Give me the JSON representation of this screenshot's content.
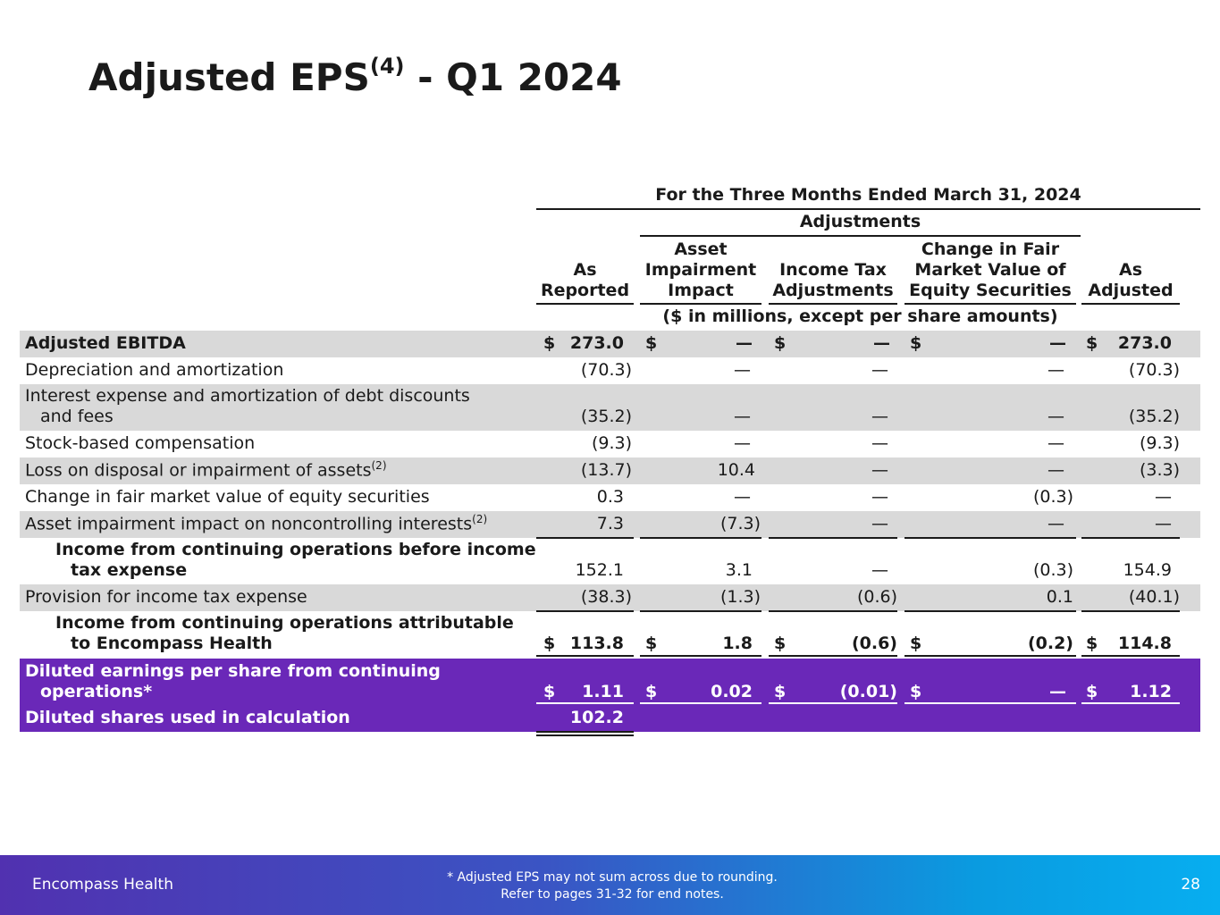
{
  "title": {
    "main": "Adjusted EPS",
    "sup": "(4)",
    "suffix": " - Q1 2024"
  },
  "table": {
    "period_header": "For the Three Months Ended March 31, 2024",
    "adjustments_header": "Adjustments",
    "columns": {
      "as_reported": [
        "As",
        "Reported"
      ],
      "asset_impairment": [
        "Asset",
        "Impairment",
        "Impact"
      ],
      "income_tax": [
        "Income Tax",
        "Adjustments"
      ],
      "fair_value": [
        "Change in Fair",
        "Market Value of",
        "Equity Securities"
      ],
      "as_adjusted": [
        "As",
        "Adjusted"
      ]
    },
    "units_note": "($ in millions, except per share amounts)",
    "dollar_sign": "$",
    "rows": [
      {
        "label": "Adjusted EBITDA",
        "values": [
          "273.0",
          "—",
          "—",
          "—",
          "273.0"
        ]
      },
      {
        "label": "Depreciation and amortization",
        "values": [
          "(70.3)",
          "—",
          "—",
          "—",
          "(70.3)"
        ]
      },
      {
        "label": "Interest expense and amortization of debt discounts",
        "label2": "and fees",
        "values": [
          "(35.2)",
          "—",
          "—",
          "—",
          "(35.2)"
        ]
      },
      {
        "label": "Stock-based compensation",
        "values": [
          "(9.3)",
          "—",
          "—",
          "—",
          "(9.3)"
        ]
      },
      {
        "label": "Loss on disposal or impairment of assets",
        "sup": "(2)",
        "values": [
          "(13.7)",
          "10.4",
          "—",
          "—",
          "(3.3)"
        ]
      },
      {
        "label": "Change in fair market value of equity securities",
        "values": [
          "0.3",
          "—",
          "—",
          "(0.3)",
          "—"
        ]
      },
      {
        "label": "Asset impairment impact on noncontrolling interests",
        "sup": "(2)",
        "values": [
          "7.3",
          "(7.3)",
          "—",
          "—",
          "—"
        ]
      },
      {
        "label": "Income from continuing operations before income",
        "label2": "tax expense",
        "values": [
          "152.1",
          "3.1",
          "—",
          "(0.3)",
          "154.9"
        ]
      },
      {
        "label": "Provision for income tax expense",
        "values": [
          "(38.3)",
          "(1.3)",
          "(0.6)",
          "0.1",
          "(40.1)"
        ]
      },
      {
        "label": "Income from continuing operations attributable",
        "label2": "to Encompass Health",
        "values": [
          "113.8",
          "1.8",
          "(0.6)",
          "(0.2)",
          "114.8"
        ]
      },
      {
        "label": "Diluted earnings per share from continuing",
        "label2": "operations*",
        "values": [
          "1.11",
          "0.02",
          "(0.01)",
          "—",
          "1.12"
        ]
      },
      {
        "label": "Diluted shares used in calculation",
        "values": [
          "102.2"
        ]
      }
    ]
  },
  "footer": {
    "brand": "Encompass Health",
    "note_line1": "*  Adjusted EPS may not sum across due to rounding.",
    "note_line2": "Refer to pages 31-32 for end notes.",
    "page": "28"
  },
  "colors": {
    "purple": "#6a28b8",
    "shade": "#d9d9d9"
  }
}
